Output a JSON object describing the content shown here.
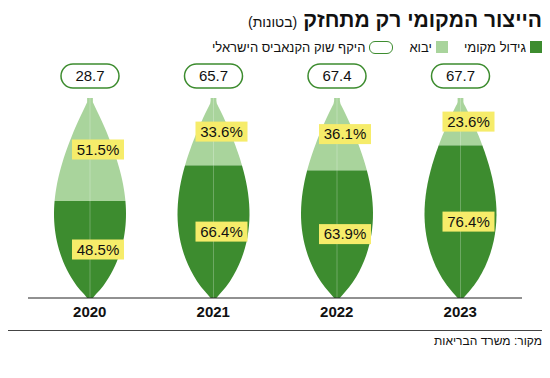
{
  "chart_data": {
    "type": "bar",
    "title": "הייצור המקומי רק מתחזק",
    "subtitle": "(בטונות)",
    "source": "מקור: משרד הבריאות",
    "categories": [
      "2020",
      "2021",
      "2022",
      "2023"
    ],
    "series": [
      {
        "name": "גידול מקומי",
        "color": "#3d8c2f",
        "values": [
          48.5,
          66.4,
          63.9,
          76.4
        ],
        "value_labels": [
          "48.5%",
          "66.4%",
          "63.9%",
          "76.4%"
        ]
      },
      {
        "name": "יבוא",
        "color": "#a9d49c",
        "values": [
          51.5,
          33.6,
          36.1,
          23.6
        ],
        "value_labels": [
          "51.5%",
          "33.6%",
          "36.1%",
          "23.6%"
        ]
      }
    ],
    "market_size": {
      "name": "היקף שוק הקנאביס הישראלי",
      "values": [
        28.7,
        65.7,
        67.4,
        67.7
      ]
    },
    "ylim": [
      0,
      100
    ],
    "stacked": true,
    "data_labels": true,
    "tick_labels": "x",
    "legend": "top-right"
  }
}
